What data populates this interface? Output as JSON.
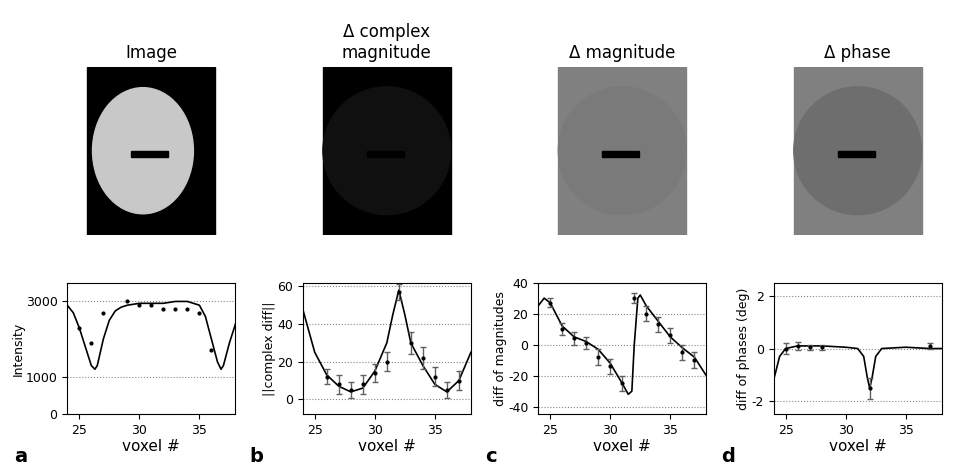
{
  "chart_data": [
    {
      "type": "line",
      "title": "Image",
      "panel_label": "a",
      "xlabel": "voxel #",
      "ylabel": "Intensity",
      "xlim": [
        24,
        38
      ],
      "ylim": [
        0,
        3500
      ],
      "xticks": [
        25,
        30,
        35
      ],
      "yticks": [
        0,
        1000,
        3000
      ],
      "grid": true,
      "series": [
        {
          "type": "line",
          "color": "#000000",
          "x": [
            24,
            24.5,
            25,
            25.5,
            26,
            26.3,
            26.5,
            27,
            27.5,
            28,
            28.5,
            29,
            30,
            31,
            32,
            33,
            34,
            35,
            35.5,
            36,
            36.5,
            36.8,
            37,
            37.5,
            38
          ],
          "values": [
            2900,
            2700,
            2300,
            1800,
            1300,
            1200,
            1300,
            2000,
            2500,
            2750,
            2850,
            2900,
            2950,
            2950,
            2950,
            3000,
            3000,
            2900,
            2600,
            2000,
            1400,
            1200,
            1300,
            1900,
            2400
          ]
        },
        {
          "type": "scatter",
          "color": "#000000",
          "marker": "point",
          "x": [
            25,
            26,
            27,
            29,
            30,
            31,
            32,
            33,
            34,
            35,
            36
          ],
          "values": [
            2300,
            1900,
            2700,
            3000,
            2900,
            2900,
            2800,
            2800,
            2800,
            2700,
            1700
          ]
        }
      ]
    },
    {
      "type": "line",
      "title": "Δ complex\nmagnitude",
      "panel_label": "b",
      "xlabel": "voxel #",
      "ylabel": "||complex diff||",
      "xlim": [
        24,
        38
      ],
      "ylim": [
        -8,
        62
      ],
      "xticks": [
        25,
        30,
        35
      ],
      "yticks": [
        0,
        20,
        40,
        60
      ],
      "grid": true,
      "series": [
        {
          "type": "line",
          "color": "#000000",
          "x": [
            24,
            25,
            26,
            27,
            28,
            29,
            30,
            31,
            31.5,
            32,
            32.5,
            33,
            34,
            35,
            36,
            37,
            38
          ],
          "values": [
            48,
            25,
            13,
            7,
            4,
            6,
            15,
            30,
            45,
            58,
            45,
            30,
            18,
            8,
            4,
            10,
            25
          ]
        },
        {
          "type": "scatter",
          "color": "#000000",
          "marker": "point",
          "x": [
            26,
            27,
            28,
            29,
            30,
            31,
            32,
            33,
            34,
            35,
            36,
            37
          ],
          "values": [
            12,
            8,
            5,
            8,
            14,
            20,
            57,
            30,
            22,
            12,
            5,
            10
          ],
          "errors": [
            4,
            5,
            4,
            5,
            5,
            5,
            4,
            6,
            6,
            5,
            4,
            5
          ]
        }
      ]
    },
    {
      "type": "line",
      "title": "Δ magnitude",
      "panel_label": "c",
      "xlabel": "voxel #",
      "ylabel": "diff of magnitudes",
      "xlim": [
        24,
        38
      ],
      "ylim": [
        -45,
        40
      ],
      "xticks": [
        25,
        30,
        35
      ],
      "yticks": [
        -40,
        -20,
        0,
        20,
        40
      ],
      "grid": true,
      "series": [
        {
          "type": "line",
          "color": "#000000",
          "x": [
            24,
            24.5,
            25,
            26,
            27,
            28,
            29,
            30,
            31,
            31.5,
            31.8,
            32,
            32.3,
            32.5,
            33,
            34,
            35,
            36,
            37,
            38
          ],
          "values": [
            25,
            30,
            27,
            12,
            5,
            2,
            -3,
            -12,
            -25,
            -32,
            -30,
            0,
            30,
            32,
            25,
            15,
            5,
            -2,
            -8,
            -20
          ]
        },
        {
          "type": "scatter",
          "color": "#000000",
          "marker": "point",
          "x": [
            25,
            26,
            27,
            28,
            29,
            30,
            31,
            32,
            33,
            34,
            35,
            36,
            37
          ],
          "values": [
            27,
            10,
            4,
            1,
            -8,
            -14,
            -25,
            30,
            20,
            13,
            6,
            -5,
            -10
          ],
          "errors": [
            3,
            4,
            4,
            4,
            5,
            5,
            5,
            3,
            5,
            5,
            5,
            5,
            5
          ]
        }
      ]
    },
    {
      "type": "line",
      "title": "Δ phase",
      "panel_label": "d",
      "xlabel": "voxel #",
      "ylabel": "diff of phases (deg)",
      "xlim": [
        24,
        38
      ],
      "ylim": [
        -2.5,
        2.5
      ],
      "xticks": [
        25,
        30,
        35
      ],
      "yticks": [
        -2,
        0,
        2
      ],
      "grid": true,
      "series": [
        {
          "type": "line",
          "color": "#000000",
          "x": [
            24,
            24.5,
            25,
            26,
            28,
            30,
            31,
            31.5,
            31.8,
            32,
            32.2,
            32.5,
            33,
            35,
            37,
            38
          ],
          "values": [
            -1.2,
            -0.3,
            0,
            0.1,
            0.1,
            0.05,
            0,
            -0.3,
            -1.1,
            -1.5,
            -1.1,
            -0.3,
            0,
            0.05,
            0,
            0
          ]
        },
        {
          "type": "scatter",
          "color": "#000000",
          "marker": "point",
          "x": [
            25,
            26,
            27,
            28,
            32,
            37
          ],
          "values": [
            0,
            0.1,
            0.05,
            0.05,
            -1.5,
            0.1
          ],
          "errors": [
            0.2,
            0.15,
            0.1,
            0.1,
            0.4,
            0.1
          ]
        }
      ]
    }
  ]
}
